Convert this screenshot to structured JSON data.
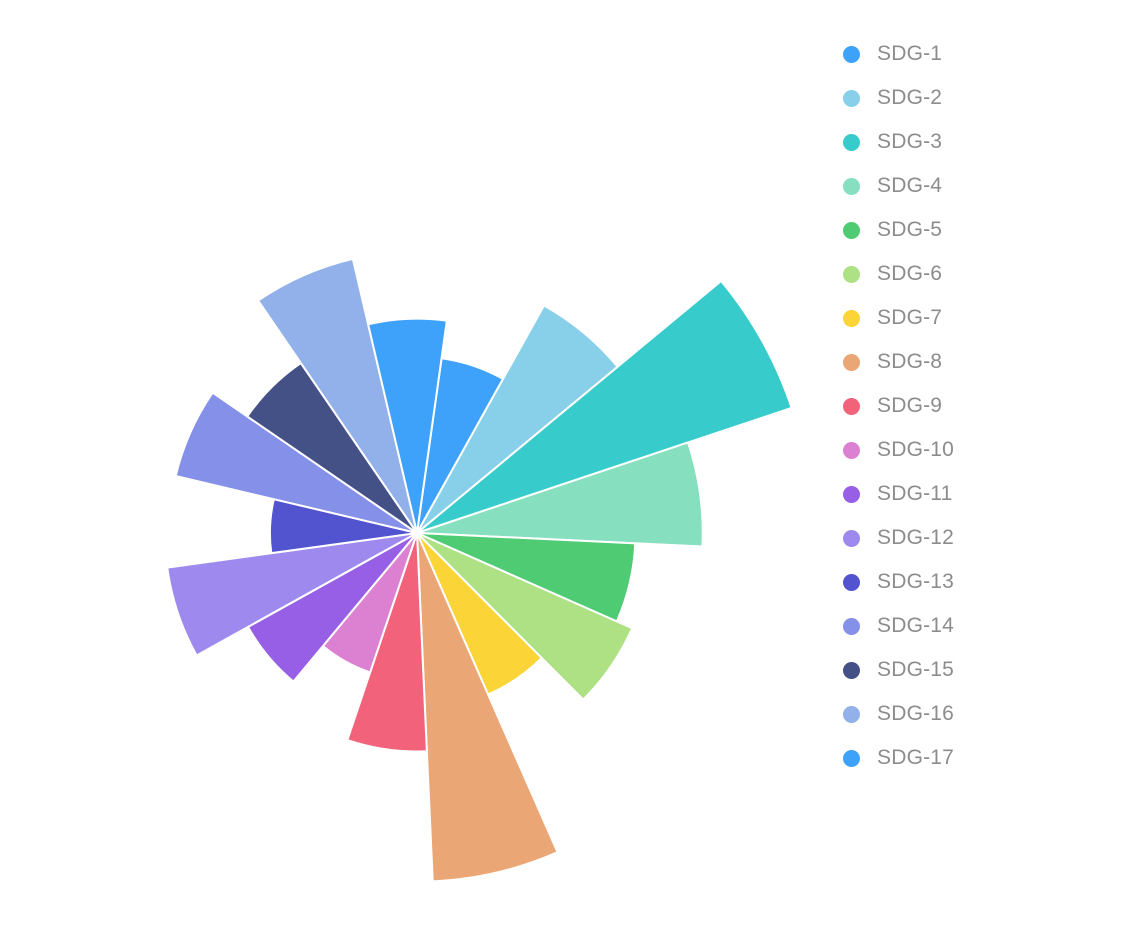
{
  "chart_data": {
    "type": "pie",
    "subtype": "nightingale-rose",
    "start_angle_deg": 8,
    "direction": "clockwise",
    "grid": false,
    "legend_position": "right",
    "max_value": 470,
    "categories": [
      "SDG-1",
      "SDG-2",
      "SDG-3",
      "SDG-4",
      "SDG-5",
      "SDG-6",
      "SDG-7",
      "SDG-8",
      "SDG-9",
      "SDG-10",
      "SDG-11",
      "SDG-12",
      "SDG-13",
      "SDG-14",
      "SDG-15",
      "SDG-16",
      "SDG-17"
    ],
    "values": [
      210,
      310,
      470,
      340,
      260,
      280,
      210,
      415,
      260,
      175,
      230,
      300,
      175,
      295,
      245,
      335,
      255
    ],
    "colors": [
      "#3ea2fb",
      "#88d0ea",
      "#37cbcb",
      "#86e0bf",
      "#4ecb73",
      "#aee084",
      "#fbd437",
      "#eaa674",
      "#f2637b",
      "#dc81d2",
      "#975fe5",
      "#9e8aef",
      "#5254cf",
      "#8590e9",
      "#445187",
      "#92b0e9",
      "#3ea2fb"
    ]
  }
}
